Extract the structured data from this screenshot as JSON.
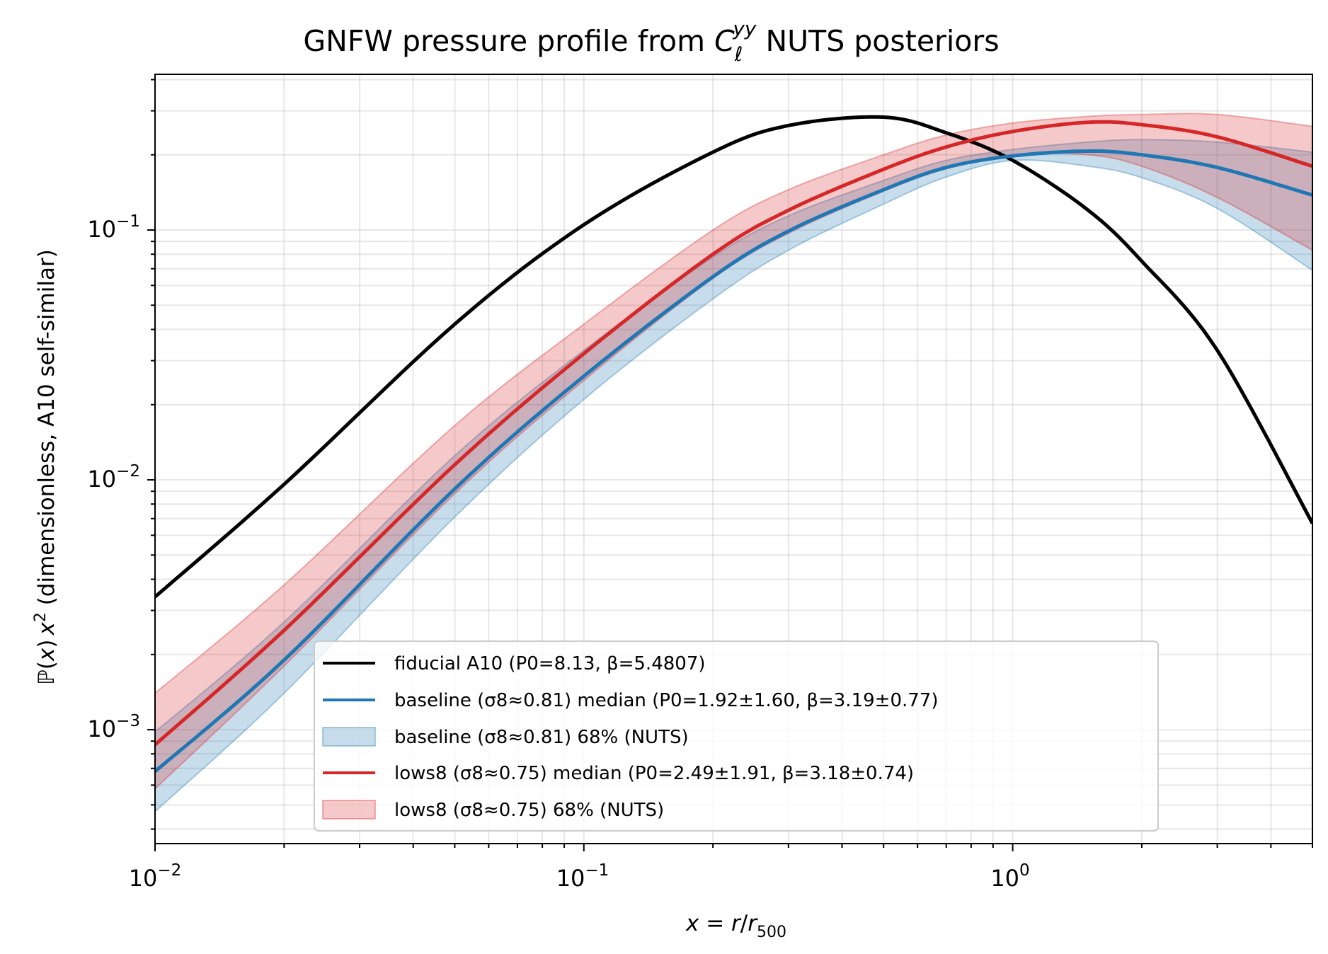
{
  "chart_data": {
    "type": "line",
    "title": "GNFW pressure profile from C_ℓ^yy NUTS posteriors",
    "title_parts": {
      "prefix": "GNFW pressure profile from ",
      "symbol": "C",
      "sub": "ℓ",
      "sup": "yy",
      "suffix": " NUTS posteriors"
    },
    "xlabel": "x = r/r_500",
    "xlabel_parts": {
      "a": "x",
      "eq": " = ",
      "b": "r",
      "slash": "/",
      "c": "r",
      "sub": "500"
    },
    "ylabel": "ℙ(x) x²  (dimensionless, A10 self-similar)",
    "ylabel_parts": {
      "a": "ℙ(",
      "b": "x",
      "c": ")",
      "d": "x",
      "sup": "2",
      "rest": "  (dimensionless, A10 self-similar)"
    },
    "xscale": "log",
    "yscale": "log",
    "xlim": [
      0.01,
      5.0
    ],
    "ylim": [
      0.00035,
      0.42
    ],
    "xticks": [
      {
        "base": "10",
        "exp": "−2",
        "value": 0.01
      },
      {
        "base": "10",
        "exp": "−1",
        "value": 0.1
      },
      {
        "base": "10",
        "exp": "0",
        "value": 1
      }
    ],
    "yticks": [
      {
        "base": "10",
        "exp": "−3",
        "value": 0.001
      },
      {
        "base": "10",
        "exp": "−2",
        "value": 0.01
      },
      {
        "base": "10",
        "exp": "−1",
        "value": 0.1
      }
    ],
    "grid": true,
    "legend_position": "lower-center",
    "x": [
      0.01,
      0.02,
      0.05,
      0.1,
      0.2,
      0.3,
      0.5,
      0.7,
      1.0,
      1.5,
      2.0,
      3.0,
      5.0
    ],
    "series": [
      {
        "name": "fiducial A10  (P0=8.13, β=5.4807)",
        "kind": "line",
        "color": "#000000",
        "values": [
          0.0034,
          0.0096,
          0.042,
          0.105,
          0.205,
          0.262,
          0.283,
          0.245,
          0.19,
          0.12,
          0.075,
          0.033,
          0.0067
        ]
      },
      {
        "name": "baseline (σ8≈0.81) median  (P0=1.92±1.60, β=3.19±0.77)",
        "kind": "line",
        "color": "#1f77b4",
        "values": [
          0.00068,
          0.0019,
          0.0092,
          0.026,
          0.065,
          0.099,
          0.145,
          0.178,
          0.198,
          0.207,
          0.2,
          0.178,
          0.138
        ]
      },
      {
        "name": "baseline (σ8≈0.81) 68% (NUTS)",
        "kind": "band",
        "color": "#1f77b4",
        "lower": [
          0.00047,
          0.0014,
          0.0071,
          0.021,
          0.053,
          0.083,
          0.127,
          0.163,
          0.19,
          0.18,
          0.162,
          0.122,
          0.069
        ],
        "upper": [
          0.00098,
          0.0027,
          0.0125,
          0.033,
          0.078,
          0.114,
          0.158,
          0.19,
          0.21,
          0.225,
          0.23,
          0.225,
          0.205
        ]
      },
      {
        "name": "lows8 (σ8≈0.75) median  (P0=2.49±1.91, β=3.18±0.74)",
        "kind": "line",
        "color": "#d62728",
        "values": [
          0.00087,
          0.0025,
          0.0115,
          0.032,
          0.08,
          0.12,
          0.175,
          0.215,
          0.248,
          0.27,
          0.264,
          0.236,
          0.18
        ]
      },
      {
        "name": "lows8 (σ8≈0.75) 68% (NUTS)",
        "kind": "band",
        "color": "#d62728",
        "lower": [
          0.00058,
          0.0018,
          0.0088,
          0.025,
          0.064,
          0.097,
          0.143,
          0.176,
          0.2,
          0.2,
          0.18,
          0.135,
          0.083
        ],
        "upper": [
          0.0014,
          0.0038,
          0.0165,
          0.042,
          0.1,
          0.145,
          0.2,
          0.24,
          0.268,
          0.285,
          0.29,
          0.29,
          0.26
        ]
      }
    ]
  }
}
